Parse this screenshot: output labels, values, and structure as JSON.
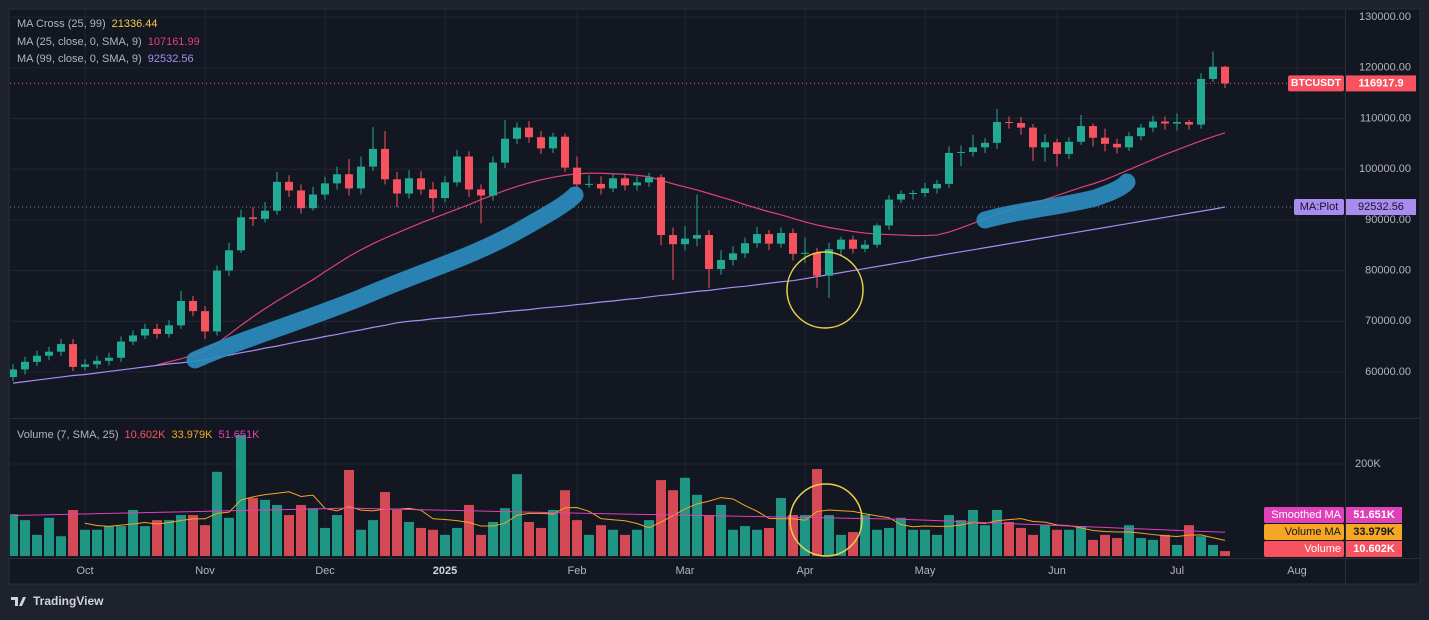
{
  "watermark": "TradingView",
  "chart_data": {
    "type": "candlestick",
    "symbol": "BTCUSDT",
    "categories": [
      null,
      null,
      null,
      null,
      null,
      null,
      "Oct",
      null,
      null,
      null,
      null,
      null,
      null,
      null,
      null,
      null,
      "Nov",
      null,
      null,
      null,
      null,
      null,
      null,
      null,
      null,
      null,
      "Dec",
      null,
      null,
      null,
      null,
      null,
      null,
      null,
      null,
      null,
      "2025",
      null,
      null,
      null,
      null,
      null,
      null,
      null,
      null,
      null,
      null,
      "Feb",
      null,
      null,
      null,
      null,
      null,
      null,
      null,
      null,
      "Mar",
      null,
      null,
      null,
      null,
      null,
      null,
      null,
      null,
      null,
      "Apr",
      null,
      null,
      null,
      null,
      null,
      null,
      null,
      null,
      null,
      "May",
      null,
      null,
      null,
      null,
      null,
      null,
      null,
      null,
      null,
      null,
      "Jun",
      null,
      null,
      null,
      null,
      null,
      null,
      null,
      null,
      null,
      "Jul",
      null,
      null,
      null,
      null,
      null,
      null,
      null,
      null,
      null,
      "Aug"
    ],
    "open": [
      59000,
      60500,
      62000,
      63200,
      64000,
      65500,
      61000,
      61500,
      62200,
      62800,
      66000,
      67200,
      68500,
      67500,
      69200,
      74000,
      72000,
      68000,
      80000,
      84000,
      90500,
      90200,
      91800,
      97500,
      95800,
      92300,
      95000,
      97200,
      99000,
      96200,
      100500,
      104000,
      98000,
      95200,
      98200,
      96000,
      94300,
      97400,
      102500,
      96000,
      94800,
      101300,
      106000,
      108200,
      106300,
      104100,
      106400,
      100300,
      97000,
      97100,
      96200,
      98200,
      96800,
      97400,
      98400,
      87000,
      85200,
      86300,
      87000,
      80300,
      82100,
      83400,
      85400,
      87200,
      85300,
      87400,
      83300,
      83500,
      79000,
      84200,
      86100,
      84300,
      85100,
      88900,
      94000,
      95100,
      95300,
      96200,
      97100,
      103200,
      103400,
      104300,
      105200,
      109300,
      109100,
      108200,
      104300,
      105300,
      103000,
      105400,
      108500,
      106200,
      105000,
      104300,
      106500,
      108200,
      109400,
      109000,
      109300,
      108800,
      117800,
      120200,
      null,
      null,
      null,
      null,
      null,
      null
    ],
    "high": [
      61500,
      63000,
      64200,
      65000,
      66500,
      66500,
      62500,
      63200,
      63800,
      67000,
      68200,
      69500,
      69500,
      70200,
      76000,
      75000,
      73000,
      81000,
      85500,
      92000,
      92500,
      93500,
      99500,
      98800,
      97000,
      96500,
      98500,
      100500,
      102000,
      102500,
      108300,
      107500,
      99500,
      99800,
      99600,
      97500,
      98600,
      103800,
      103500,
      97000,
      102500,
      109700,
      109200,
      109500,
      107500,
      107200,
      107000,
      102500,
      98800,
      98600,
      99100,
      99000,
      98600,
      99300,
      99000,
      88500,
      88800,
      95000,
      88000,
      84000,
      84800,
      86500,
      88600,
      88000,
      88500,
      88300,
      86500,
      84500,
      85500,
      86700,
      86900,
      86000,
      89300,
      94900,
      95800,
      95900,
      97300,
      97900,
      104500,
      104700,
      106800,
      106100,
      111900,
      110400,
      110300,
      108900,
      106900,
      106000,
      106300,
      110700,
      109000,
      108000,
      106000,
      107300,
      108900,
      110500,
      110400,
      111000,
      109700,
      118900,
      123200,
      120400,
      null,
      null,
      null,
      null,
      null,
      null
    ],
    "low": [
      58200,
      59500,
      61200,
      62300,
      63200,
      60200,
      60300,
      60700,
      61300,
      62000,
      65300,
      66500,
      66600,
      66800,
      68500,
      71000,
      66500,
      67200,
      79000,
      83500,
      88800,
      89500,
      91000,
      94500,
      91200,
      91800,
      94000,
      96000,
      94800,
      95000,
      99600,
      97000,
      92500,
      94200,
      95000,
      91500,
      93500,
      96600,
      94500,
      89300,
      93800,
      100200,
      105000,
      105200,
      103000,
      103200,
      99500,
      96000,
      96300,
      95000,
      95500,
      95800,
      95800,
      96500,
      85000,
      78200,
      84000,
      84800,
      76600,
      79200,
      81000,
      82500,
      84500,
      84000,
      84500,
      82000,
      81500,
      76600,
      74600,
      83000,
      83400,
      83600,
      84500,
      88000,
      93300,
      94000,
      94500,
      95200,
      96300,
      100600,
      102500,
      103200,
      104000,
      108000,
      106800,
      101600,
      101500,
      100500,
      102000,
      104800,
      104500,
      103500,
      103100,
      103600,
      105700,
      107300,
      107800,
      107600,
      107800,
      108000,
      117200,
      116000,
      null,
      null,
      null,
      null,
      null,
      null
    ],
    "close": [
      60500,
      62000,
      63200,
      64000,
      65500,
      61000,
      61500,
      62200,
      62800,
      66000,
      67200,
      68500,
      67500,
      69200,
      74000,
      72000,
      68000,
      80000,
      84000,
      90500,
      90200,
      91800,
      97500,
      95800,
      92300,
      95000,
      97200,
      99000,
      96200,
      100500,
      104000,
      98000,
      95200,
      98200,
      96000,
      94300,
      97400,
      102500,
      96000,
      94800,
      101300,
      106000,
      108200,
      106300,
      104100,
      106400,
      100300,
      97000,
      97100,
      96200,
      98200,
      96800,
      97400,
      98400,
      87000,
      85200,
      86300,
      87000,
      80300,
      82100,
      83400,
      85400,
      87200,
      85300,
      87400,
      83300,
      83500,
      79000,
      84200,
      86100,
      84300,
      85100,
      88900,
      94000,
      95100,
      95300,
      96200,
      97100,
      103200,
      103400,
      104300,
      105200,
      109300,
      109100,
      108200,
      104300,
      105300,
      103000,
      105400,
      108500,
      106200,
      105000,
      104300,
      106500,
      108200,
      109400,
      109000,
      109300,
      108800,
      117800,
      120200,
      116917.9,
      null,
      null,
      null,
      null,
      null,
      null
    ],
    "up_color": "#22ab94",
    "down_color": "#f7525f",
    "ylim": [
      51000,
      131000
    ],
    "yticks": [
      {
        "value": 60000,
        "label": "60000.00"
      },
      {
        "value": 70000,
        "label": "70000.00"
      },
      {
        "value": 80000,
        "label": "80000.00"
      },
      {
        "value": 90000,
        "label": "90000.00"
      },
      {
        "value": 100000,
        "label": "100000.00"
      },
      {
        "value": 110000,
        "label": "110000.00"
      },
      {
        "value": 120000,
        "label": "120000.00"
      },
      {
        "value": 130000,
        "label": "130000.00"
      }
    ],
    "grid": true,
    "ma_cross": {
      "name": "MA Cross (25, 99)",
      "value": 21336.44,
      "color": "#f7c948"
    },
    "overlays": [
      {
        "name": "MA (25, close, 0, SMA, 9)",
        "color": "#e0407a",
        "values": [
          null,
          null,
          null,
          null,
          null,
          null,
          null,
          null,
          null,
          null,
          null,
          null,
          61400,
          62000,
          62600,
          63300,
          64200,
          65600,
          67400,
          69200,
          70900,
          72500,
          74000,
          75400,
          76800,
          78200,
          79800,
          81300,
          82800,
          84100,
          85300,
          86400,
          87400,
          88400,
          89400,
          90300,
          91200,
          92100,
          93000,
          94000,
          94900,
          95800,
          96600,
          97300,
          97900,
          98400,
          98800,
          99100,
          99200,
          99200,
          99100,
          99000,
          98800,
          98500,
          97800,
          97100,
          96500,
          95900,
          95200,
          94500,
          93800,
          93000,
          92300,
          91600,
          91000,
          90300,
          89600,
          89000,
          88500,
          88100,
          87700,
          87400,
          87200,
          87100,
          87000,
          86900,
          86900,
          87000,
          87600,
          88400,
          89300,
          90200,
          91100,
          91900,
          92600,
          93300,
          94000,
          94800,
          95600,
          96400,
          97100,
          97900,
          98900,
          99900,
          100900,
          101900,
          102900,
          103800,
          104700,
          105600,
          106400,
          107161.99,
          null,
          null,
          null,
          null,
          null,
          null
        ]
      },
      {
        "name": "MA (99, close, 0, SMA, 9)",
        "color": "#a98cf0",
        "tag": "MA:Plot",
        "values": [
          57800,
          58100,
          58400,
          58700,
          59000,
          59300,
          59500,
          59800,
          60100,
          60400,
          60700,
          61000,
          61300,
          61600,
          61800,
          62100,
          62400,
          62900,
          63300,
          63800,
          64200,
          64700,
          65100,
          65600,
          66100,
          66500,
          67000,
          67400,
          67900,
          68300,
          68800,
          69200,
          69700,
          70000,
          70200,
          70500,
          70700,
          70900,
          71200,
          71400,
          71600,
          71900,
          72100,
          72300,
          72600,
          72800,
          73000,
          73300,
          73500,
          73800,
          74000,
          74300,
          74500,
          74800,
          75100,
          75300,
          75600,
          75900,
          76100,
          76400,
          76700,
          76900,
          77200,
          77500,
          77800,
          78000,
          78400,
          78800,
          79200,
          79600,
          80000,
          80400,
          80800,
          81200,
          81600,
          82000,
          82500,
          82900,
          83300,
          83700,
          84100,
          84500,
          84900,
          85300,
          85700,
          86100,
          86500,
          86900,
          87300,
          87700,
          88100,
          88500,
          88900,
          89300,
          89700,
          90100,
          90500,
          90900,
          91300,
          91700,
          92100,
          92532.56,
          null,
          null,
          null,
          null,
          null,
          null
        ]
      }
    ],
    "volume": {
      "title": "Volume (7, SMA, 25)",
      "name": "Volume",
      "last_label": "10.602K",
      "values": [
        91000,
        78000,
        46000,
        83000,
        43000,
        100000,
        57000,
        57000,
        65000,
        65000,
        100000,
        65000,
        78000,
        78000,
        89000,
        89000,
        67000,
        183000,
        83000,
        263000,
        126000,
        122000,
        111000,
        89000,
        111000,
        104000,
        61000,
        89000,
        187000,
        57000,
        78000,
        139000,
        100000,
        74000,
        61000,
        57000,
        46000,
        61000,
        111000,
        46000,
        74000,
        104000,
        178000,
        74000,
        61000,
        100000,
        143000,
        78000,
        46000,
        67000,
        57000,
        46000,
        57000,
        78000,
        165000,
        143000,
        170000,
        133000,
        89000,
        111000,
        57000,
        65000,
        57000,
        61000,
        126000,
        89000,
        89000,
        189000,
        89000,
        46000,
        52000,
        89000,
        57000,
        61000,
        83000,
        57000,
        57000,
        46000,
        89000,
        78000,
        100000,
        67000,
        100000,
        74000,
        61000,
        46000,
        67000,
        57000,
        57000,
        65000,
        35000,
        46000,
        39000,
        67000,
        39000,
        35000,
        46000,
        24000,
        67000,
        43000,
        24000,
        10602,
        null,
        null,
        null,
        null,
        null,
        null
      ],
      "ylim": [
        0,
        300000
      ],
      "yticks": [
        {
          "value": 200000,
          "label": "200K"
        }
      ],
      "series": [
        {
          "name": "Volume MA",
          "color": "#f5a623",
          "last_label": "33.979K",
          "values": [
            null,
            null,
            null,
            null,
            null,
            null,
            71100,
            66300,
            64400,
            67100,
            69600,
            72700,
            69600,
            72600,
            77100,
            80600,
            80900,
            92700,
            95300,
            121700,
            128600,
            133300,
            136400,
            139600,
            129300,
            132300,
            103400,
            98100,
            107400,
            99700,
            98100,
            102100,
            101600,
            103400,
            99400,
            80900,
            79300,
            76900,
            72900,
            65100,
            65100,
            71300,
            88600,
            92600,
            92600,
            91000,
            104900,
            105400,
            97100,
            81300,
            78900,
            76700,
            70600,
            61300,
            73700,
            87600,
            102300,
            113100,
            119300,
            127000,
            124000,
            109700,
            97400,
            81900,
            80900,
            80900,
            77700,
            96600,
            100000,
            98400,
            97100,
            91900,
            87300,
            83300,
            68100,
            63600,
            65100,
            64300,
            64300,
            67300,
            72900,
            70600,
            76700,
            79100,
            81300,
            75100,
            73600,
            67400,
            66000,
            61000,
            55400,
            53300,
            52300,
            52300,
            49700,
            46600,
            43900,
            42300,
            45300,
            45900,
            39700,
            33979,
            null,
            null,
            null,
            null,
            null,
            null
          ]
        },
        {
          "name": "Smoothed MA",
          "color": "#e040b8",
          "last_label": "51.651K",
          "values": [
            88000,
            88600,
            89100,
            89700,
            90300,
            90900,
            91400,
            92000,
            92600,
            93100,
            93700,
            94300,
            94900,
            95400,
            96000,
            96600,
            97100,
            97700,
            98300,
            98900,
            99400,
            100000,
            100600,
            101100,
            101700,
            102300,
            102900,
            103400,
            104000,
            103400,
            102900,
            102300,
            101700,
            101100,
            100600,
            100000,
            99400,
            98900,
            98300,
            97700,
            97100,
            96600,
            96000,
            95400,
            94900,
            94300,
            93700,
            93100,
            92600,
            92000,
            91500,
            91000,
            90600,
            90100,
            89600,
            89100,
            88600,
            88200,
            87700,
            87200,
            86700,
            86200,
            85800,
            85300,
            84800,
            84300,
            83800,
            83400,
            82900,
            82400,
            81900,
            81400,
            81000,
            80500,
            80000,
            78900,
            77900,
            76800,
            75800,
            74700,
            73700,
            72600,
            71600,
            70500,
            69400,
            68400,
            67300,
            66300,
            65200,
            64200,
            63100,
            62100,
            61000,
            59900,
            58900,
            57800,
            56800,
            55700,
            54700,
            53600,
            52600,
            51651,
            null,
            null,
            null,
            null,
            null,
            null
          ]
        }
      ]
    }
  }
}
